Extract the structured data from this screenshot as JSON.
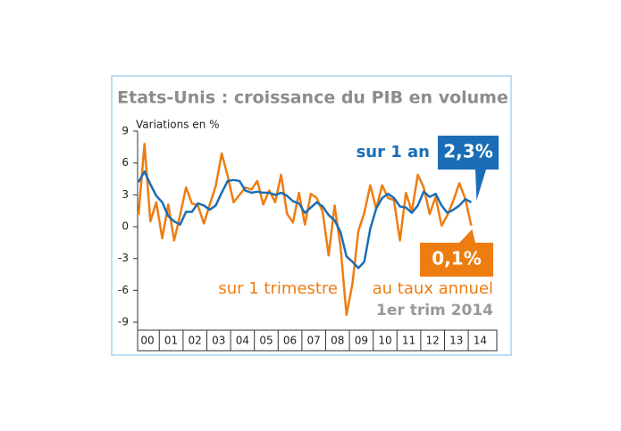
{
  "chart_data": {
    "type": "line",
    "title": "Etats-Unis : croissance du PIB en volume",
    "y_label": "Variations en %",
    "categories": [
      "00",
      null,
      null,
      null,
      "01",
      null,
      null,
      null,
      "02",
      null,
      null,
      null,
      "03",
      null,
      null,
      null,
      "04",
      null,
      null,
      null,
      "05",
      null,
      null,
      null,
      "06",
      null,
      null,
      null,
      "07",
      null,
      null,
      null,
      "08",
      null,
      null,
      null,
      "09",
      null,
      null,
      null,
      "10",
      null,
      null,
      null,
      "11",
      null,
      null,
      null,
      "12",
      null,
      null,
      null,
      "13",
      null,
      null,
      null,
      "14"
    ],
    "series": [
      {
        "name": "sur 1 an",
        "color": "#1b6db5",
        "values": [
          4.2,
          5.2,
          4.0,
          2.9,
          2.3,
          1.0,
          0.5,
          0.2,
          1.4,
          1.4,
          2.2,
          2.0,
          1.6,
          2.0,
          3.2,
          4.3,
          4.4,
          4.3,
          3.4,
          3.2,
          3.3,
          3.2,
          3.2,
          3.0,
          3.2,
          2.9,
          2.4,
          2.2,
          1.3,
          1.8,
          2.3,
          1.9,
          1.1,
          0.6,
          -0.5,
          -2.8,
          -3.3,
          -3.9,
          -3.3,
          -0.2,
          1.7,
          2.7,
          3.1,
          2.7,
          1.9,
          1.8,
          1.3,
          2.0,
          3.3,
          2.8,
          3.1,
          2.0,
          1.3,
          1.6,
          2.0,
          2.6,
          2.3
        ],
        "value_labels": [
          null,
          null,
          null,
          null,
          null,
          null,
          null,
          null,
          null,
          null,
          null,
          null,
          null,
          null,
          null,
          null,
          null,
          null,
          null,
          null,
          null,
          null,
          null,
          null,
          null,
          null,
          null,
          null,
          null,
          null,
          null,
          null,
          null,
          null,
          null,
          null,
          null,
          null,
          null,
          null,
          null,
          null,
          null,
          null,
          null,
          null,
          null,
          null,
          null,
          null,
          null,
          null,
          null,
          null,
          null,
          null,
          "2,3%"
        ]
      },
      {
        "name": "sur 1 trimestre",
        "color": "#ee7d11",
        "values": [
          1.1,
          7.8,
          0.5,
          2.3,
          -1.1,
          2.1,
          -1.3,
          1.1,
          3.7,
          2.2,
          2.0,
          0.3,
          2.1,
          3.8,
          6.9,
          4.8,
          2.3,
          3.0,
          3.7,
          3.5,
          4.3,
          2.1,
          3.4,
          2.3,
          4.9,
          1.2,
          0.4,
          3.2,
          0.2,
          3.1,
          2.7,
          1.4,
          -2.7,
          2.0,
          -1.9,
          -8.3,
          -5.4,
          -0.4,
          1.3,
          3.9,
          1.7,
          3.9,
          2.7,
          2.5,
          -1.3,
          3.2,
          1.4,
          4.9,
          3.7,
          1.2,
          2.8,
          0.1,
          1.1,
          2.5,
          4.1,
          2.6,
          0.1
        ],
        "value_labels": [
          null,
          null,
          null,
          null,
          null,
          null,
          null,
          null,
          null,
          null,
          null,
          null,
          null,
          null,
          null,
          null,
          null,
          null,
          null,
          null,
          null,
          null,
          null,
          null,
          null,
          null,
          null,
          null,
          null,
          null,
          null,
          null,
          null,
          null,
          null,
          null,
          null,
          null,
          null,
          null,
          null,
          null,
          null,
          null,
          null,
          null,
          null,
          null,
          null,
          null,
          null,
          null,
          null,
          null,
          null,
          null,
          "0,1%"
        ]
      }
    ],
    "annotations": [
      "au taux annuel",
      "1er trim 2014"
    ],
    "ylim": [
      -9.75,
      9
    ],
    "yticks": [
      9,
      6,
      3,
      0,
      -3,
      -6,
      -9
    ],
    "grid": false
  }
}
